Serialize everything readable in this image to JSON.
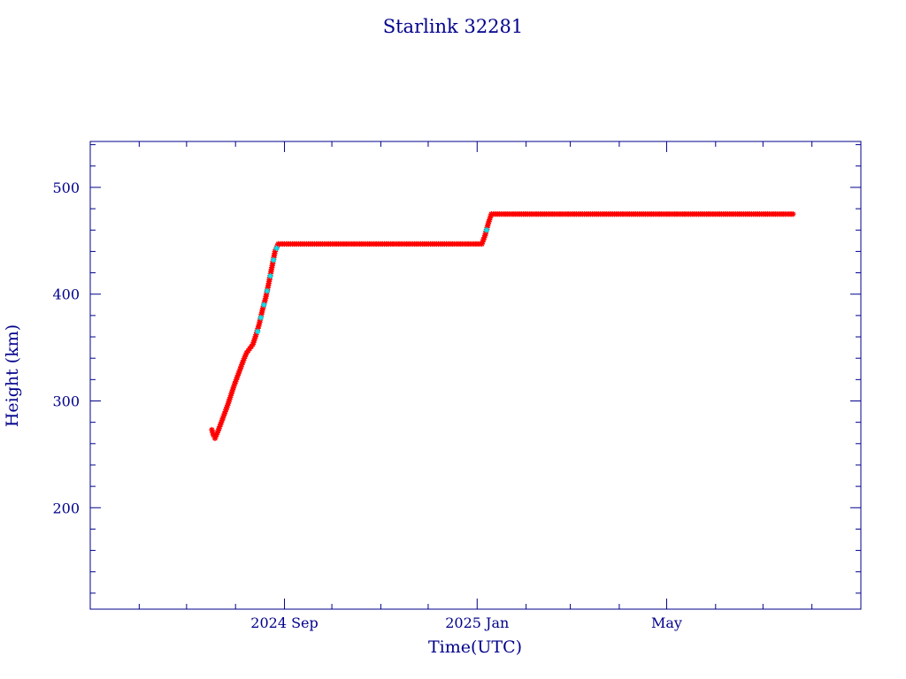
{
  "chart_data": {
    "type": "scatter",
    "title": "Starlink 32281",
    "xlabel": "Time(UTC)",
    "ylabel": "Height (km)",
    "x_axis": {
      "kind": "date",
      "range": [
        "2024-05-01",
        "2025-09-01"
      ],
      "tick_labels": [
        {
          "date": "2024-09-01",
          "label": "2024 Sep"
        },
        {
          "date": "2025-01-01",
          "label": "2025 Jan"
        },
        {
          "date": "2025-05-01",
          "label": "May"
        }
      ],
      "minor_ticks": [
        "2024-06-01",
        "2024-07-01",
        "2024-08-01",
        "2024-10-01",
        "2024-11-01",
        "2024-12-01",
        "2025-02-01",
        "2025-03-01",
        "2025-04-01",
        "2025-06-01",
        "2025-07-01",
        "2025-08-01"
      ]
    },
    "y_axis": {
      "range": [
        105,
        543
      ],
      "major_ticks": [
        200,
        300,
        400,
        500
      ],
      "minor_step": 20
    },
    "grid": false,
    "legend": "none",
    "colors": {
      "frame": "#00008b",
      "point_primary": "#ff0000",
      "point_secondary": "#00e5ee",
      "point_dark": "#006400"
    },
    "series": [
      {
        "marker": "asterisk",
        "color": "#ff0000",
        "points": [
          [
            "2024-07-17",
            273
          ],
          [
            "2024-07-18",
            268
          ],
          [
            "2024-07-19",
            265
          ],
          [
            "2024-07-21",
            272
          ],
          [
            "2024-07-23",
            280
          ],
          [
            "2024-07-25",
            288
          ],
          [
            "2024-07-27",
            296
          ],
          [
            "2024-07-29",
            305
          ],
          [
            "2024-07-31",
            314
          ],
          [
            "2024-08-02",
            322
          ],
          [
            "2024-08-04",
            330
          ],
          [
            "2024-08-06",
            338
          ],
          [
            "2024-08-08",
            345
          ],
          [
            "2024-08-10",
            349
          ],
          [
            "2024-08-12",
            353
          ],
          [
            "2024-08-14",
            362
          ],
          [
            "2024-08-16",
            372
          ],
          [
            "2024-08-18",
            385
          ],
          [
            "2024-08-20",
            396
          ],
          [
            "2024-08-22",
            410
          ],
          [
            "2024-08-24",
            425
          ],
          [
            "2024-08-26",
            440
          ],
          [
            "2024-08-28",
            447
          ],
          [
            "2024-09-10",
            447
          ],
          [
            "2024-09-25",
            447
          ],
          [
            "2024-10-10",
            447
          ],
          [
            "2024-10-25",
            447
          ],
          [
            "2024-11-10",
            447
          ],
          [
            "2024-11-25",
            447
          ],
          [
            "2024-12-10",
            447
          ],
          [
            "2024-12-25",
            447
          ],
          [
            "2025-01-04",
            447
          ],
          [
            "2025-01-06",
            455
          ],
          [
            "2025-01-08",
            466
          ],
          [
            "2025-01-10",
            475
          ],
          [
            "2025-01-25",
            475
          ],
          [
            "2025-02-10",
            475
          ],
          [
            "2025-02-25",
            475
          ],
          [
            "2025-03-10",
            475
          ],
          [
            "2025-03-25",
            475
          ],
          [
            "2025-04-10",
            475
          ],
          [
            "2025-04-25",
            475
          ],
          [
            "2025-05-10",
            475
          ],
          [
            "2025-05-25",
            475
          ],
          [
            "2025-06-10",
            475
          ],
          [
            "2025-06-25",
            475
          ],
          [
            "2025-07-10",
            475
          ],
          [
            "2025-07-20",
            475
          ]
        ]
      },
      {
        "marker": "asterisk",
        "color": "#00e5ee",
        "points": [
          [
            "2024-08-15",
            365
          ],
          [
            "2024-08-17",
            378
          ],
          [
            "2024-08-19",
            390
          ],
          [
            "2024-08-21",
            403
          ],
          [
            "2024-08-23",
            417
          ],
          [
            "2024-08-25",
            432
          ],
          [
            "2024-08-27",
            443
          ],
          [
            "2025-01-07",
            460
          ]
        ]
      }
    ]
  }
}
